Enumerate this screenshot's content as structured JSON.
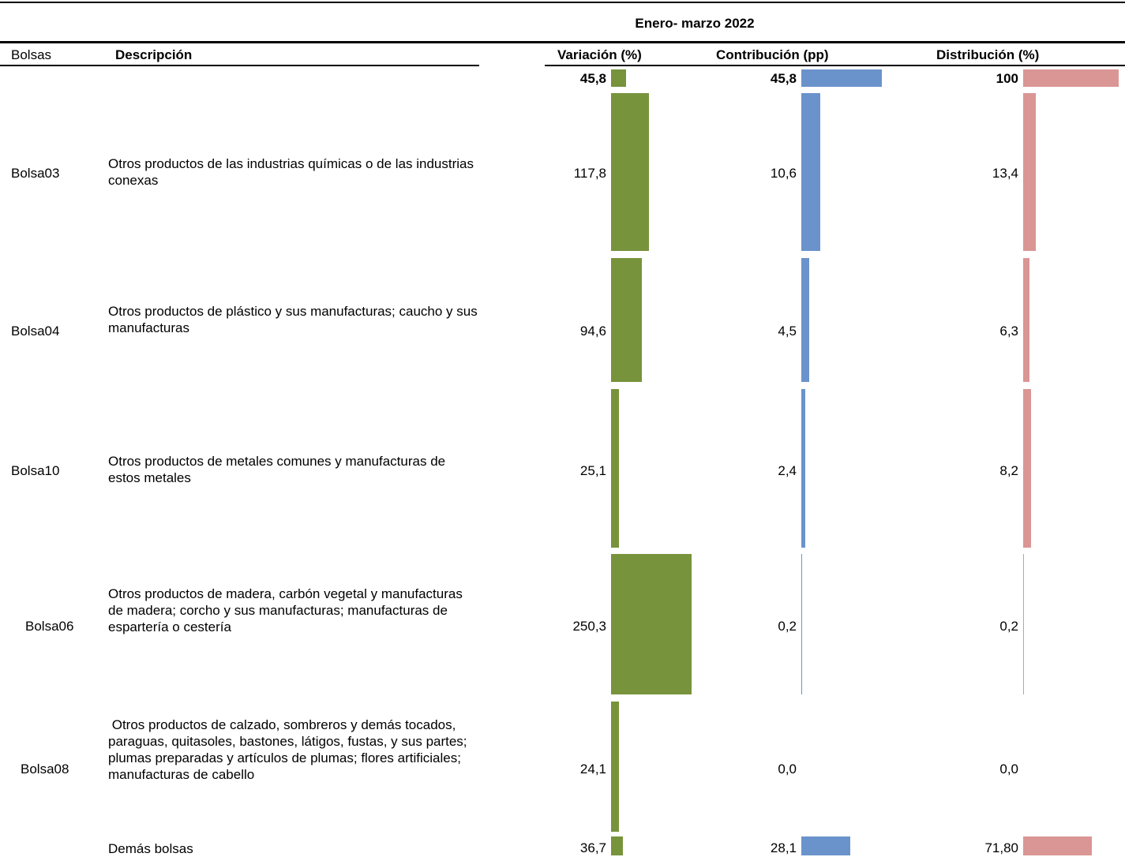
{
  "period_title": "Enero- marzo 2022",
  "headers": {
    "bolsas": "Bolsas",
    "descripcion": "Descripción",
    "variacion": "Variación (%)",
    "contribucion": "Contribución (pp)",
    "distribucion": "Distribución (%)"
  },
  "colors": {
    "variacion": "#77933c",
    "contribucion": "#6a93cb",
    "distribucion": "#da9694"
  },
  "chart_data": {
    "type": "table",
    "columns": [
      "Bolsas",
      "Descripción",
      "Variación (%)",
      "Contribución (pp)",
      "Distribución (%)"
    ],
    "total": {
      "variacion": 45.8,
      "variacion_label": "45,8",
      "contribucion": 45.8,
      "contribucion_label": "45,8",
      "distribucion": 100,
      "distribucion_label": "100"
    },
    "rows": [
      {
        "bolsa": "Bolsa03",
        "descripcion": "Otros productos de las industrias químicas o de las industrias conexas",
        "variacion": 117.8,
        "variacion_label": "117,8",
        "contribucion": 10.6,
        "contribucion_label": "10,6",
        "distribucion": 13.4,
        "distribucion_label": "13,4"
      },
      {
        "bolsa": "Bolsa04",
        "descripcion": "Otros productos de plástico y sus manufacturas; caucho y sus manufacturas",
        "variacion": 94.6,
        "variacion_label": "94,6",
        "contribucion": 4.5,
        "contribucion_label": "4,5",
        "distribucion": 6.3,
        "distribucion_label": "6,3"
      },
      {
        "bolsa": "Bolsa10",
        "descripcion": "Otros productos de metales comunes y manufacturas de estos metales",
        "variacion": 25.1,
        "variacion_label": "25,1",
        "contribucion": 2.4,
        "contribucion_label": "2,4",
        "distribucion": 8.2,
        "distribucion_label": "8,2"
      },
      {
        "bolsa": "Bolsa06",
        "descripcion": "Otros productos de madera, carbón vegetal y manufacturas de madera; corcho y sus manufacturas; manufacturas de espartería o cestería",
        "variacion": 250.3,
        "variacion_label": "250,3",
        "contribucion": 0.2,
        "contribucion_label": "0,2",
        "distribucion": 0.2,
        "distribucion_label": "0,2"
      },
      {
        "bolsa": "Bolsa08",
        "descripcion": " Otros productos de calzado, sombreros y demás tocados, paraguas, quitasoles, bastones, látigos, fustas, y sus partes; plumas preparadas y artículos de plumas; flores artificiales; manufacturas de cabello",
        "variacion": 24.1,
        "variacion_label": "24,1",
        "contribucion": 0.0,
        "contribucion_label": "0,0",
        "distribucion": 0.0,
        "distribucion_label": "0,0"
      },
      {
        "bolsa": "",
        "descripcion": "Demás bolsas",
        "variacion": 36.7,
        "variacion_label": "36,7",
        "contribucion": 28.1,
        "contribucion_label": "28,1",
        "distribucion": 71.8,
        "distribucion_label": "71,80"
      }
    ]
  }
}
